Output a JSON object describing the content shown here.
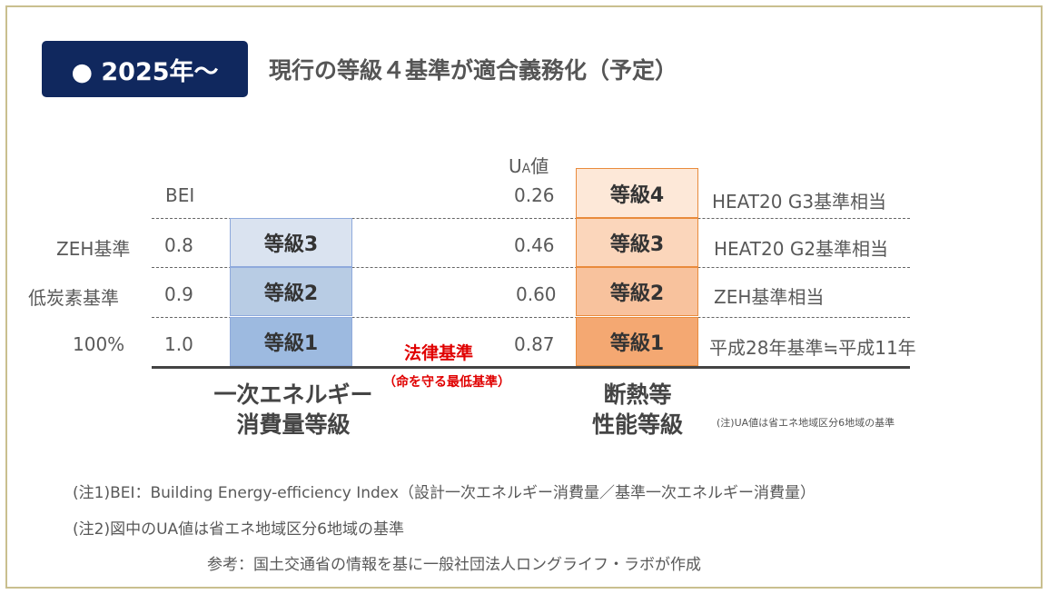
{
  "badge": "● 2025年～",
  "headline": "現行の等級４基準が適合義務化（予定）",
  "bei_axis": {
    "header": "BEI",
    "rows": [
      {
        "name": "ZEH基準",
        "value": "0.8",
        "grade": "等級3",
        "color": "#dae3f0"
      },
      {
        "name": "低炭素基準",
        "value": "0.9",
        "grade": "等級2",
        "color": "#b8cce4"
      },
      {
        "name": "100%",
        "value": "1.0",
        "grade": "等級1",
        "color": "#9dbae0"
      }
    ],
    "category": [
      "一次エネルギー",
      "消費量等級"
    ]
  },
  "ua_axis": {
    "header": "UA値",
    "header_main": "U",
    "header_sub": "A",
    "header_tail": "値",
    "rows": [
      {
        "value": "0.26",
        "grade": "等級4",
        "desc": "HEAT20 G3基準相当",
        "color": "#fde8d8"
      },
      {
        "value": "0.46",
        "grade": "等級3",
        "desc": "HEAT20 G2基準相当",
        "color": "#fbd6bb"
      },
      {
        "value": "0.60",
        "grade": "等級2",
        "desc": "ZEH基準相当",
        "color": "#f8c29d"
      },
      {
        "value": "0.87",
        "grade": "等級1",
        "desc": "平成28年基準≒平成11年",
        "color": "#f4a872"
      }
    ],
    "category": [
      "断熱等",
      "性能等級"
    ]
  },
  "legal": {
    "title": "法律基準",
    "sub": "（命を守る最低基準）"
  },
  "small_note": "(注)UA値は省エネ地域区分6地域の基準",
  "notes": [
    "(注1)BEI：Building Energy-efficiency Index（設計一次エネルギー消費量／基準一次エネルギー消費量）",
    "(注2)図中のUA値は省エネ地域区分6地域の基準"
  ],
  "source": "参考：国土交通省の情報を基に一般社団法人ロングライフ・ラボが作成"
}
